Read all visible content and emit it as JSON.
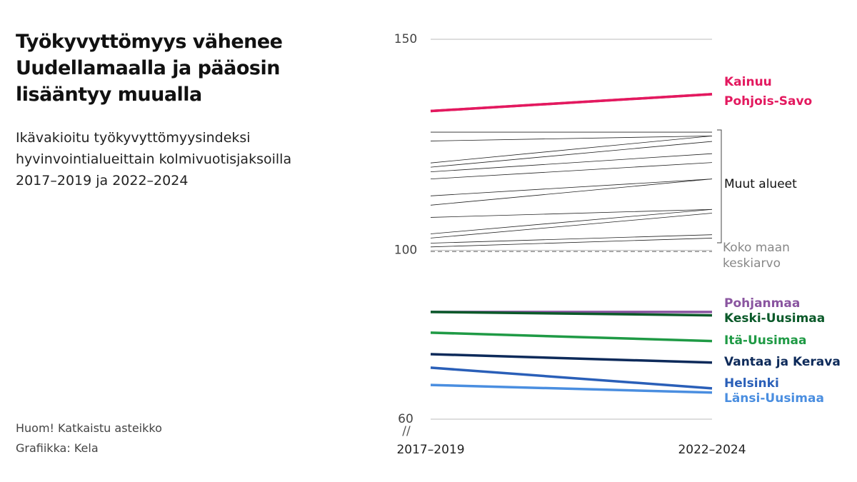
{
  "chart_data": {
    "type": "slope",
    "title": "Työkyvyttömyys vähenee Uudellamaalla ja pääosin lisääntyy muualla",
    "subtitle": "Ikävakioitu työkyvyttömyysindeksi hyvinvointialueittain kolmivuotisjaksoilla 2017–2019 ja 2022–2024",
    "notes": [
      "Huom! Katkaistu asteikko",
      "Grafiikka: Kela"
    ],
    "categories": [
      "2017–2019",
      "2022–2024"
    ],
    "ylim": [
      60,
      150
    ],
    "yticks": [
      60,
      100,
      150
    ],
    "grid": true,
    "series": [
      {
        "name": "Kainuu",
        "color": "#e3195f",
        "values": [
          133,
          137
        ]
      },
      {
        "name": "Pohjois-Savo",
        "color": "#e3195f",
        "values": [
          133,
          137
        ]
      },
      {
        "name": "Pohjanmaa",
        "color": "#8a55a0",
        "values": [
          85.4,
          85.4
        ]
      },
      {
        "name": "Keski-Uusimaa",
        "color": "#0b5a2a",
        "values": [
          85.4,
          84.6
        ]
      },
      {
        "name": "Itä-Uusimaa",
        "color": "#1f9a45",
        "values": [
          80.5,
          78.5
        ]
      },
      {
        "name": "Vantaa ja Kerava",
        "color": "#0d2a5a",
        "values": [
          75.4,
          73.4
        ]
      },
      {
        "name": "Helsinki",
        "color": "#2a5fb8",
        "values": [
          72.2,
          67.3
        ]
      },
      {
        "name": "Länsi-Uusimaa",
        "color": "#4a8ee0",
        "values": [
          68.1,
          66.3
        ]
      }
    ],
    "other_regions": {
      "name": "Muut alueet",
      "color": "#222222",
      "lines": [
        [
          128.0,
          128.0
        ],
        [
          125.9,
          127.1
        ],
        [
          120.7,
          127.1
        ],
        [
          119.7,
          125.8
        ],
        [
          118.6,
          122.9
        ],
        [
          116.9,
          120.8
        ],
        [
          112.9,
          116.9
        ],
        [
          110.7,
          116.9
        ],
        [
          107.8,
          109.7
        ],
        [
          103.9,
          109.7
        ],
        [
          102.9,
          108.8
        ],
        [
          101.7,
          103.7
        ],
        [
          100.8,
          102.9
        ]
      ]
    },
    "average": {
      "name": "Koko maan keskiarvo",
      "color": "#888888",
      "values": [
        99.7,
        99.7
      ]
    }
  }
}
